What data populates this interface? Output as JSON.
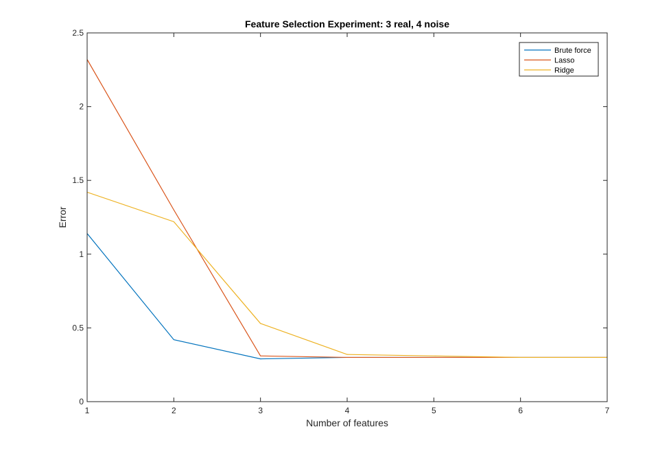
{
  "chart_data": {
    "type": "line",
    "title": "Feature Selection Experiment: 3 real, 4 noise",
    "xlabel": "Number of features",
    "ylabel": "Error",
    "xlim": [
      1,
      7
    ],
    "ylim": [
      0,
      2.5
    ],
    "x": [
      1,
      2,
      3,
      4,
      5,
      6,
      7
    ],
    "xticks": [
      "1",
      "2",
      "3",
      "4",
      "5",
      "6",
      "7"
    ],
    "yticks": [
      "0",
      "0.5",
      "1",
      "1.5",
      "2",
      "2.5"
    ],
    "ytick_values": [
      0,
      0.5,
      1,
      1.5,
      2,
      2.5
    ],
    "grid": false,
    "legend_position": "top-right",
    "series": [
      {
        "name": "Brute force",
        "color": "#0072BD",
        "values": [
          1.14,
          0.42,
          0.29,
          0.3,
          0.3,
          0.3,
          0.3
        ]
      },
      {
        "name": "Lasso",
        "color": "#D95319",
        "values": [
          2.32,
          1.3,
          0.31,
          0.3,
          0.3,
          0.3,
          0.3
        ]
      },
      {
        "name": "Ridge",
        "color": "#EDB120",
        "values": [
          1.42,
          1.22,
          0.53,
          0.32,
          0.31,
          0.3,
          0.3
        ]
      }
    ]
  }
}
